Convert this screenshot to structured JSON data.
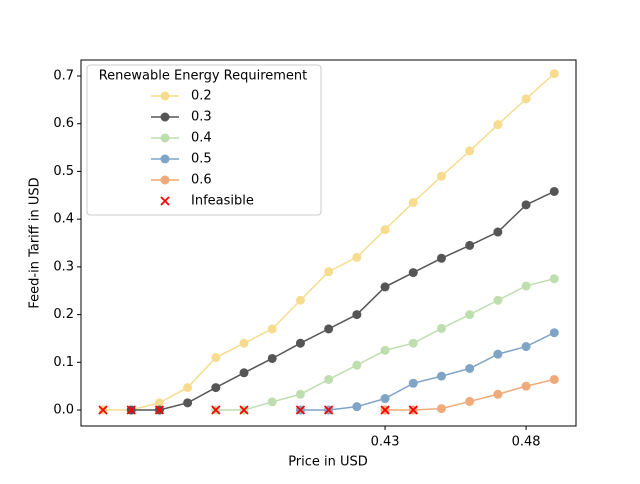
{
  "chart_data": {
    "type": "line",
    "xlabel": "Price in USD",
    "ylabel": "Feed-in Tariff in USD",
    "x": [
      0.33,
      0.34,
      0.35,
      0.36,
      0.37,
      0.38,
      0.39,
      0.4,
      0.41,
      0.42,
      0.43,
      0.44,
      0.45,
      0.46,
      0.47,
      0.48,
      0.49
    ],
    "series": [
      {
        "name": "0.2",
        "color": "#f7dc8f",
        "values": [
          0,
          0,
          0.015,
          0.047,
          0.11,
          0.14,
          0.17,
          0.23,
          0.29,
          0.32,
          0.378,
          0.435,
          0.49,
          0.543,
          0.598,
          0.652,
          0.705
        ]
      },
      {
        "name": "0.3",
        "color": "#555555",
        "values": [
          null,
          0,
          0,
          0.015,
          0.047,
          0.078,
          0.108,
          0.14,
          0.17,
          0.2,
          0.258,
          0.288,
          0.318,
          0.345,
          0.373,
          0.43,
          0.458
        ]
      },
      {
        "name": "0.4",
        "color": "#bfdeaf",
        "values": [
          null,
          null,
          null,
          null,
          0,
          0,
          0.017,
          0.033,
          0.064,
          0.094,
          0.125,
          0.14,
          0.171,
          0.2,
          0.23,
          0.26,
          0.275
        ]
      },
      {
        "name": "0.5",
        "color": "#7fa4c6",
        "values": [
          null,
          null,
          null,
          null,
          null,
          null,
          null,
          0,
          0,
          0.007,
          0.024,
          0.056,
          0.071,
          0.087,
          0.117,
          0.133,
          0.162
        ]
      },
      {
        "name": "0.6",
        "color": "#f0aa7a",
        "values": [
          null,
          null,
          null,
          null,
          null,
          null,
          null,
          null,
          null,
          null,
          0,
          0,
          0.003,
          0.018,
          0.033,
          0.05,
          0.064
        ]
      }
    ],
    "infeasible": {
      "name": "Infeasible",
      "color": "#ff0000",
      "x": [
        0.33,
        0.34,
        0.35,
        0.37,
        0.38,
        0.4,
        0.41,
        0.43,
        0.44
      ],
      "values": [
        0,
        0,
        0,
        0,
        0,
        0,
        0,
        0,
        0
      ]
    },
    "legend_title": "Renewable Energy Requirement",
    "legend_loc": "upper left",
    "xlim": [
      0.3222,
      0.4977
    ],
    "xticks": [
      0.43,
      0.48
    ],
    "ylim": [
      -0.0335,
      0.7335
    ],
    "yticks": [
      {
        "value": 0,
        "label": "0.0"
      },
      0.1,
      0.2,
      0.3,
      0.4,
      0.5,
      0.6,
      0.7
    ]
  }
}
